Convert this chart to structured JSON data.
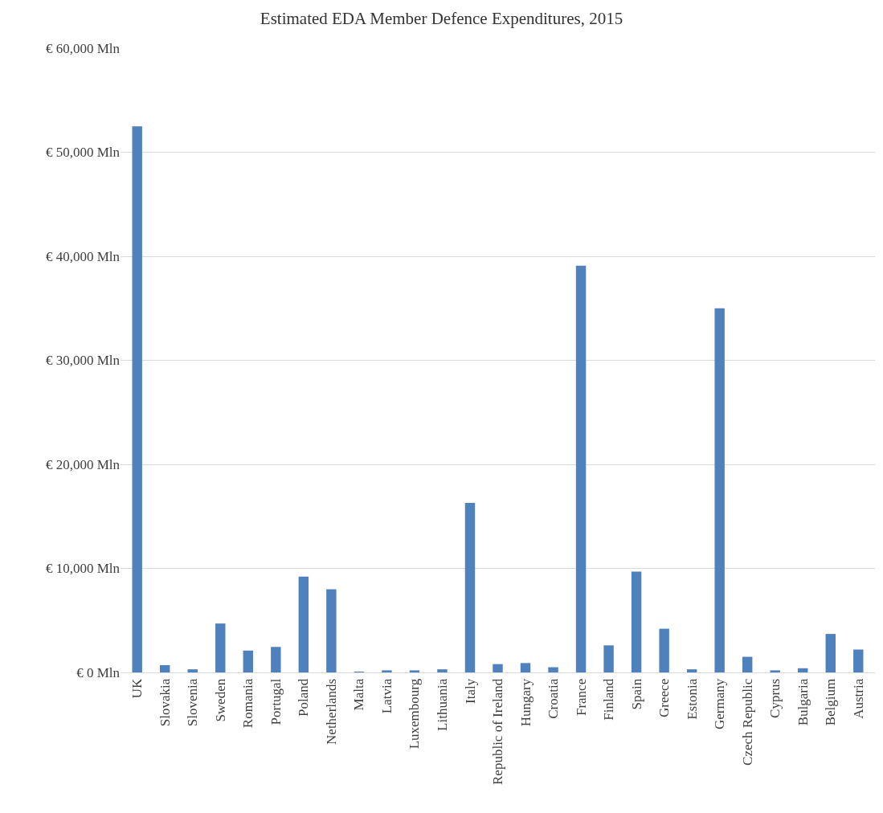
{
  "chart_data": {
    "type": "bar",
    "title": "Estimated EDA Member Defence Expenditures, 2015",
    "categories": [
      "UK",
      "Slovakia",
      "Slovenia",
      "Sweden",
      "Romania",
      "Portugal",
      "Poland",
      "Netherlands",
      "Malta",
      "Latvia",
      "Luxembourg",
      "Lithuania",
      "Italy",
      "Republic of Ireland",
      "Hungary",
      "Croatia",
      "France",
      "Finland",
      "Spain",
      "Greece",
      "Estonia",
      "Germany",
      "Czech Republic",
      "Cyprus",
      "Bulgaria",
      "Belgium",
      "Austria"
    ],
    "values": [
      52500,
      700,
      300,
      4700,
      2100,
      2450,
      9200,
      8000,
      40,
      200,
      200,
      300,
      16300,
      800,
      900,
      500,
      39100,
      2600,
      9700,
      4200,
      300,
      35000,
      1500,
      200,
      400,
      3700,
      2200
    ],
    "color": "#4f81bd",
    "ylim": [
      0,
      60000
    ],
    "yticks": [
      {
        "value": 0,
        "label": "€ 0 Mln"
      },
      {
        "value": 10000,
        "label": "€ 10,000 Mln"
      },
      {
        "value": 20000,
        "label": "€ 20,000 Mln"
      },
      {
        "value": 30000,
        "label": "€ 30,000 Mln"
      },
      {
        "value": 40000,
        "label": "€ 40,000 Mln"
      },
      {
        "value": 50000,
        "label": "€ 50,000 Mln"
      },
      {
        "value": 60000,
        "label": "€ 60,000 Mln"
      }
    ],
    "grid": "y"
  }
}
